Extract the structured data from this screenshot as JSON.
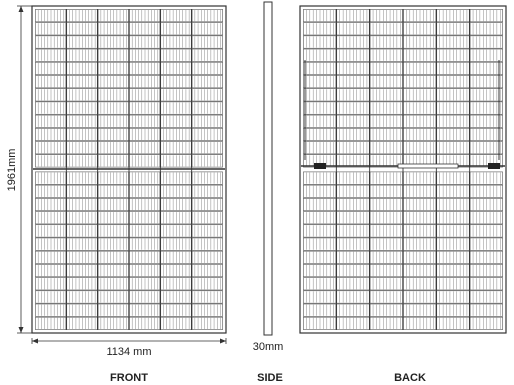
{
  "dimensions": {
    "height_label": "1961mm",
    "width_label": "1134 mm",
    "thickness_label": "30mm"
  },
  "views": {
    "front": "FRONT",
    "side": "SIDE",
    "back": "BACK"
  },
  "panel": {
    "cell_columns": 6,
    "cell_rows_per_half": 12,
    "line_color": "#555555",
    "frame_color": "#333333"
  }
}
